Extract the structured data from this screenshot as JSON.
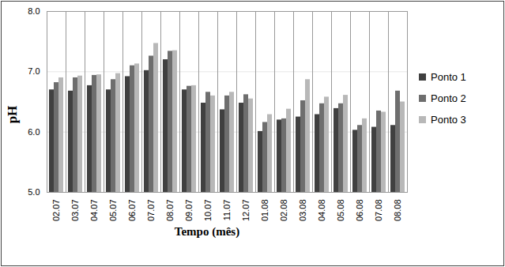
{
  "chart_data": {
    "type": "bar",
    "x_label": "Tempo (mês)",
    "y_label": "pH",
    "categories": [
      "02.07",
      "03.07",
      "04.07",
      "05.07",
      "06.07",
      "07.07",
      "08.07",
      "09.07",
      "10.07",
      "11.07",
      "12.07",
      "01.08",
      "02.08",
      "03.08",
      "04.08",
      "05.08",
      "06.08",
      "07.08",
      "08.08"
    ],
    "series": [
      {
        "name": "Ponto 1",
        "color": "#404040",
        "values": [
          6.7,
          6.68,
          6.77,
          6.7,
          6.92,
          7.02,
          7.2,
          6.7,
          6.48,
          6.37,
          6.48,
          6.01,
          6.2,
          6.25,
          6.29,
          6.39,
          6.03,
          6.08,
          6.11
        ]
      },
      {
        "name": "Ponto 2",
        "color": "#6e6e6e",
        "values": [
          6.82,
          6.9,
          6.94,
          6.87,
          7.1,
          7.26,
          7.34,
          6.76,
          6.66,
          6.6,
          6.62,
          6.16,
          6.22,
          6.52,
          6.47,
          6.47,
          6.11,
          6.35,
          6.68
        ]
      },
      {
        "name": "Ponto 3",
        "color": "#b8b8b8",
        "values": [
          6.9,
          6.93,
          6.95,
          6.97,
          7.13,
          7.47,
          7.35,
          6.77,
          6.6,
          6.66,
          6.55,
          6.29,
          6.38,
          6.87,
          6.58,
          6.61,
          6.22,
          6.33,
          6.5
        ]
      }
    ],
    "ylim": [
      5,
      8
    ],
    "yticks": [
      5,
      6,
      7,
      8
    ],
    "grid": true,
    "legend": "right"
  }
}
